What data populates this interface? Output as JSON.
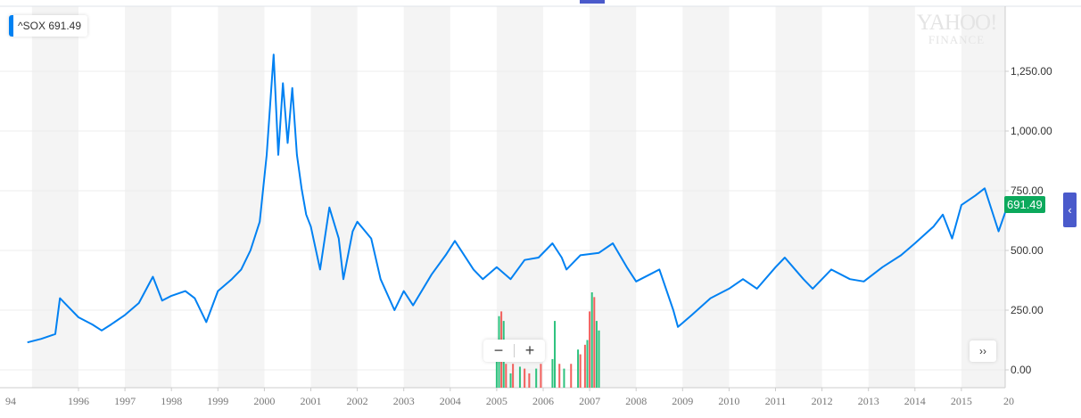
{
  "legend": {
    "symbol": "^SOX",
    "value": "691.49",
    "color": "#0081f2"
  },
  "watermark": {
    "line1": "YAHOO!",
    "line2": "FINANCE"
  },
  "price_tag": {
    "value": "691.49",
    "color": "#0ca95c"
  },
  "controls": {
    "zoom_out": "−",
    "zoom_in": "+",
    "more": "››",
    "side": "‹"
  },
  "chart_data": {
    "type": "line",
    "series": [
      {
        "name": "^SOX",
        "color": "#0081f2",
        "points": [
          [
            1994.9,
            115
          ],
          [
            1995.2,
            130
          ],
          [
            1995.5,
            150
          ],
          [
            1995.6,
            300
          ],
          [
            1995.8,
            260
          ],
          [
            1996.0,
            220
          ],
          [
            1996.3,
            190
          ],
          [
            1996.5,
            165
          ],
          [
            1996.7,
            190
          ],
          [
            1997.0,
            230
          ],
          [
            1997.3,
            280
          ],
          [
            1997.6,
            390
          ],
          [
            1997.8,
            290
          ],
          [
            1998.0,
            310
          ],
          [
            1998.3,
            330
          ],
          [
            1998.5,
            300
          ],
          [
            1998.75,
            200
          ],
          [
            1999.0,
            330
          ],
          [
            1999.3,
            380
          ],
          [
            1999.5,
            420
          ],
          [
            1999.7,
            500
          ],
          [
            1999.9,
            620
          ],
          [
            2000.05,
            900
          ],
          [
            2000.2,
            1320
          ],
          [
            2000.3,
            900
          ],
          [
            2000.4,
            1200
          ],
          [
            2000.5,
            950
          ],
          [
            2000.6,
            1180
          ],
          [
            2000.7,
            900
          ],
          [
            2000.8,
            760
          ],
          [
            2000.9,
            650
          ],
          [
            2001.0,
            600
          ],
          [
            2001.2,
            420
          ],
          [
            2001.4,
            680
          ],
          [
            2001.6,
            550
          ],
          [
            2001.7,
            380
          ],
          [
            2001.9,
            580
          ],
          [
            2002.0,
            620
          ],
          [
            2002.3,
            550
          ],
          [
            2002.5,
            380
          ],
          [
            2002.8,
            250
          ],
          [
            2003.0,
            330
          ],
          [
            2003.2,
            270
          ],
          [
            2003.6,
            400
          ],
          [
            2003.9,
            480
          ],
          [
            2004.1,
            540
          ],
          [
            2004.5,
            420
          ],
          [
            2004.7,
            380
          ],
          [
            2005.0,
            430
          ],
          [
            2005.3,
            380
          ],
          [
            2005.6,
            460
          ],
          [
            2005.9,
            470
          ],
          [
            2006.2,
            530
          ],
          [
            2006.4,
            470
          ],
          [
            2006.5,
            420
          ],
          [
            2006.8,
            480
          ],
          [
            2007.2,
            490
          ],
          [
            2007.5,
            530
          ],
          [
            2007.8,
            430
          ],
          [
            2008.0,
            370
          ],
          [
            2008.3,
            400
          ],
          [
            2008.5,
            420
          ],
          [
            2008.8,
            250
          ],
          [
            2008.9,
            180
          ],
          [
            2009.2,
            230
          ],
          [
            2009.6,
            300
          ],
          [
            2010.0,
            340
          ],
          [
            2010.3,
            380
          ],
          [
            2010.6,
            340
          ],
          [
            2011.0,
            430
          ],
          [
            2011.2,
            470
          ],
          [
            2011.6,
            380
          ],
          [
            2011.8,
            340
          ],
          [
            2012.2,
            420
          ],
          [
            2012.6,
            380
          ],
          [
            2012.9,
            370
          ],
          [
            2013.3,
            430
          ],
          [
            2013.7,
            480
          ],
          [
            2014.0,
            530
          ],
          [
            2014.4,
            600
          ],
          [
            2014.6,
            650
          ],
          [
            2014.8,
            550
          ],
          [
            2015.0,
            690
          ],
          [
            2015.3,
            730
          ],
          [
            2015.5,
            760
          ],
          [
            2015.7,
            640
          ],
          [
            2015.8,
            580
          ],
          [
            2016.0,
            691.49
          ]
        ]
      }
    ],
    "volume": {
      "up_color": "#2ec27e",
      "down_color": "#f25f5c",
      "bars": [
        [
          2005.0,
          0.3,
          "up"
        ],
        [
          2005.05,
          0.75,
          "up"
        ],
        [
          2005.1,
          0.8,
          "down"
        ],
        [
          2005.15,
          0.7,
          "up"
        ],
        [
          2005.2,
          0.25,
          "down"
        ],
        [
          2005.3,
          0.15,
          "up"
        ],
        [
          2005.35,
          0.25,
          "down"
        ],
        [
          2005.5,
          0.22,
          "up"
        ],
        [
          2005.6,
          0.2,
          "down"
        ],
        [
          2005.7,
          0.15,
          "down"
        ],
        [
          2005.85,
          0.2,
          "up"
        ],
        [
          2005.95,
          0.25,
          "down"
        ],
        [
          2006.2,
          0.3,
          "up"
        ],
        [
          2006.25,
          0.7,
          "up"
        ],
        [
          2006.35,
          0.25,
          "down"
        ],
        [
          2006.45,
          0.2,
          "up"
        ],
        [
          2006.6,
          0.25,
          "down"
        ],
        [
          2006.75,
          0.4,
          "up"
        ],
        [
          2006.8,
          0.35,
          "down"
        ],
        [
          2006.9,
          0.45,
          "down"
        ],
        [
          2006.95,
          0.5,
          "up"
        ],
        [
          2007.0,
          0.8,
          "down"
        ],
        [
          2007.05,
          1.0,
          "up"
        ],
        [
          2007.1,
          0.95,
          "down"
        ],
        [
          2007.15,
          0.7,
          "up"
        ],
        [
          2007.2,
          0.6,
          "up"
        ]
      ]
    },
    "y_ticks": [
      "0.00",
      "250.00",
      "500.00",
      "750.00",
      "1,000.00",
      "1,250.00"
    ],
    "y_tick_values": [
      0,
      250,
      500,
      750,
      1000,
      1250
    ],
    "x_ticks": [
      "94",
      "1996",
      "1997",
      "1998",
      "1999",
      "2000",
      "2001",
      "2002",
      "2003",
      "2004",
      "2005",
      "2006",
      "2007",
      "2008",
      "2009",
      "2010",
      "2011",
      "2012",
      "2013",
      "2014",
      "2015",
      "20"
    ],
    "x_tick_values": [
      1994.35,
      1996,
      1997,
      1998,
      1999,
      2000,
      2001,
      2002,
      2003,
      2004,
      2005,
      2006,
      2007,
      2008,
      2009,
      2010,
      2011,
      2012,
      2013,
      2014,
      2015,
      2016
    ],
    "ylim": [
      -75,
      1500
    ],
    "xlim": [
      1994.3,
      2016.0
    ],
    "grid": true,
    "legend": "top-left"
  }
}
